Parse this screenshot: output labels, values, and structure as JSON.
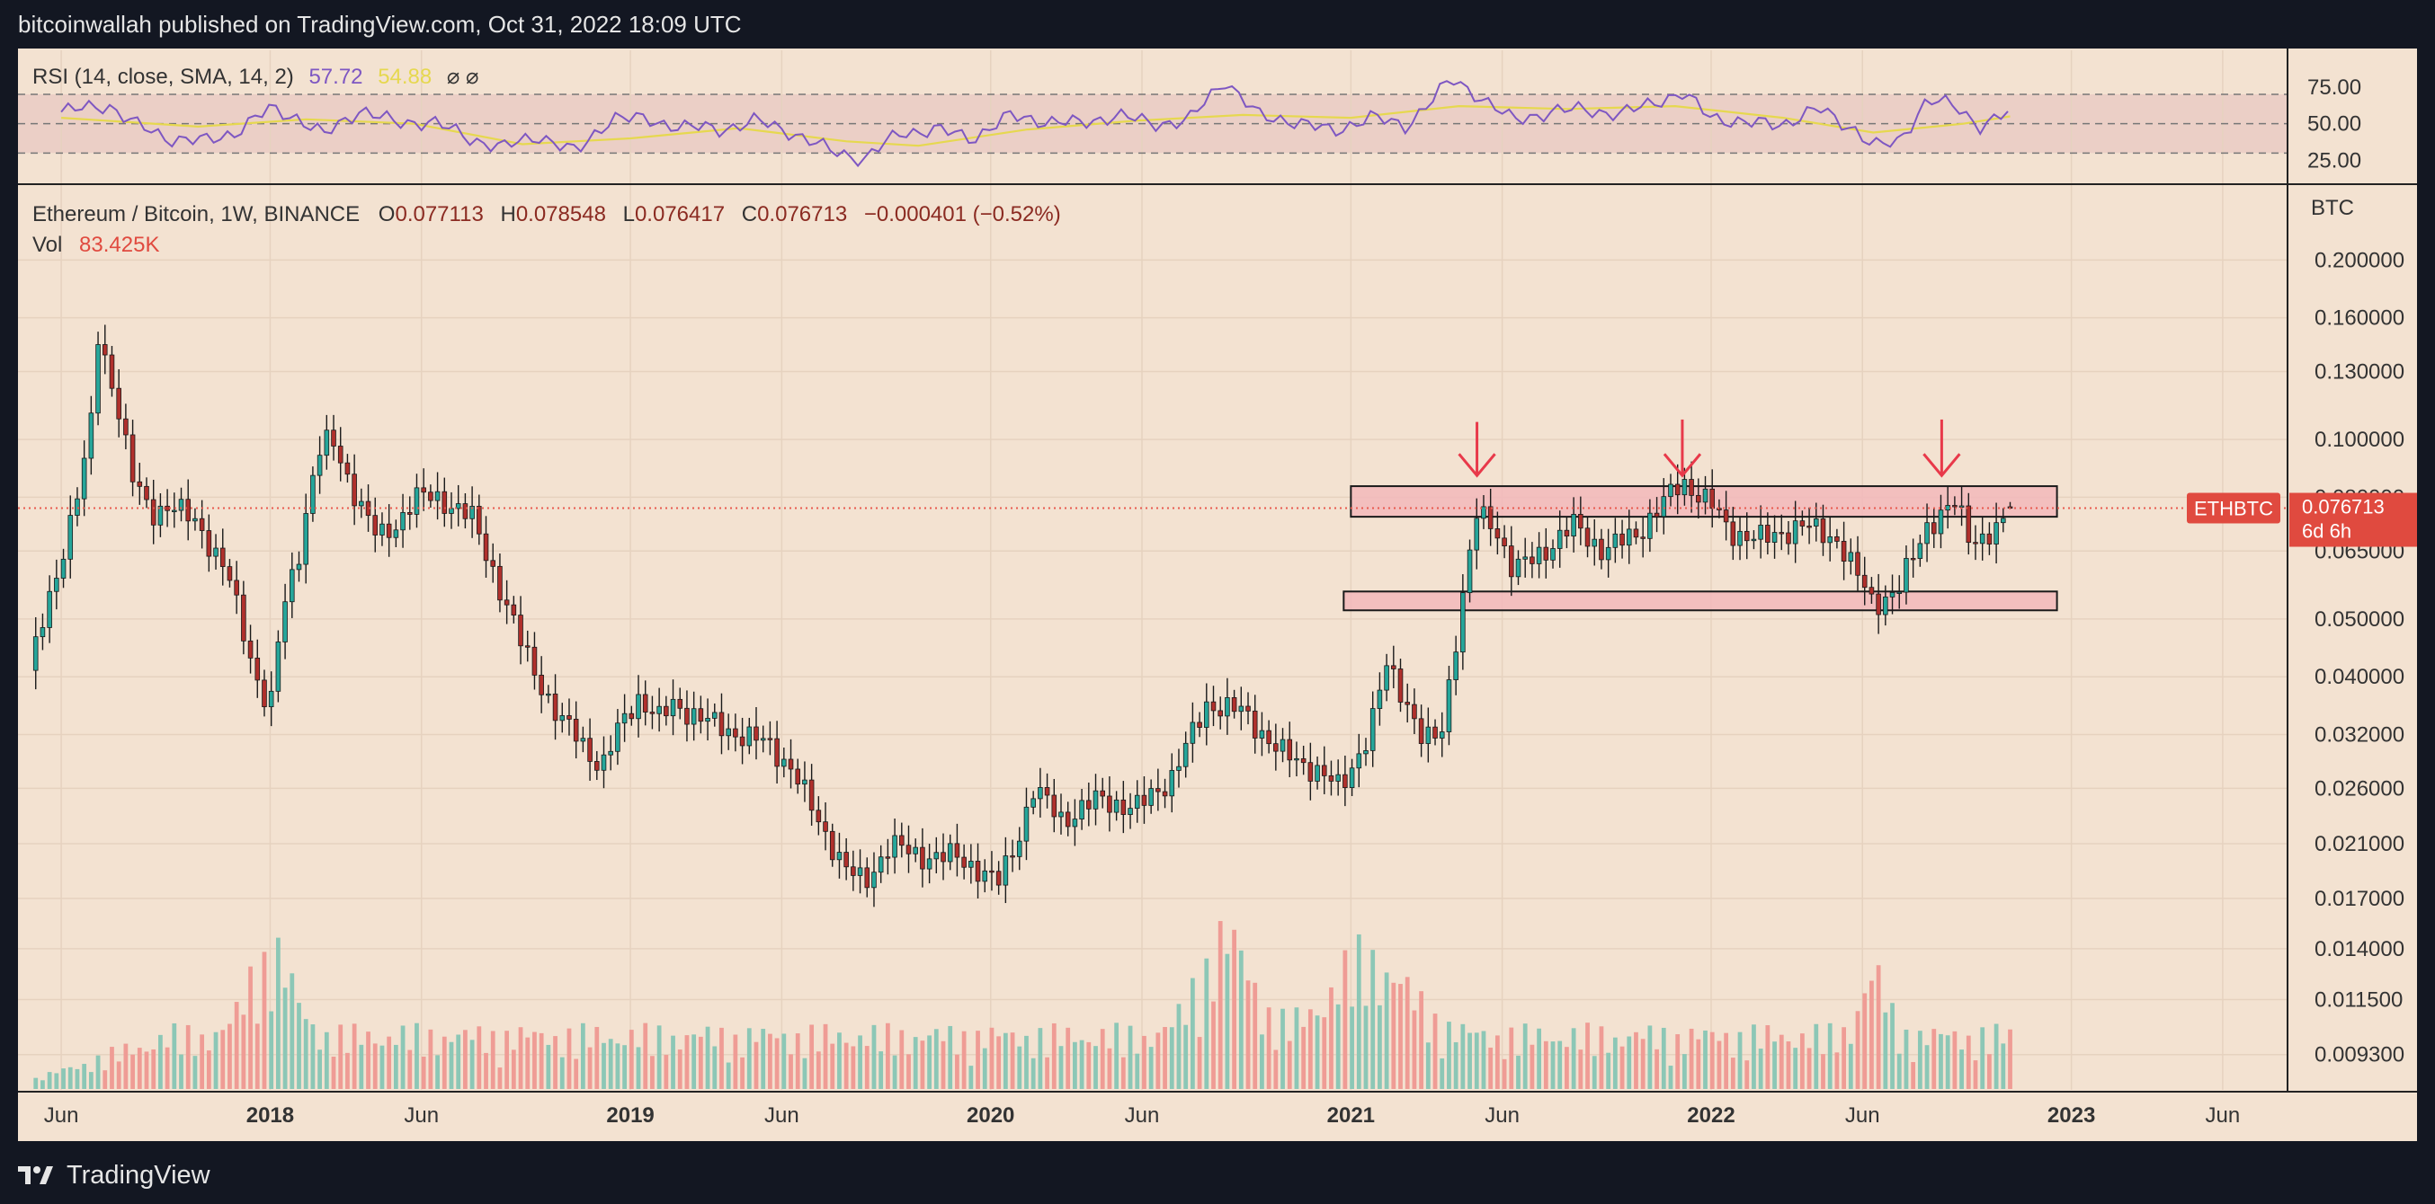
{
  "header": {
    "published": "bitcoinwallah published on TradingView.com, Oct 31, 2022 18:09 UTC"
  },
  "footer": {
    "brand": "TradingView"
  },
  "colors": {
    "background": "#f3e2d1",
    "up": "#26a69a",
    "down": "#b0302c",
    "up_volume": "#8cc7b6",
    "down_volume": "#ef9c95",
    "zone": "#f2b9bb",
    "arrow": "#e8394a",
    "rsi": "#7e57c2",
    "rsi_ma": "#e6d84f",
    "price_line": "#e85a4f"
  },
  "chart_data": [
    {
      "type": "line",
      "title": "RSI (14, close, SMA, 14, 2)",
      "legend": [
        {
          "name": "RSI",
          "value": "57.72"
        },
        {
          "name": "SMA",
          "value": "54.88"
        }
      ],
      "legend_extra": "⌀ ⌀",
      "ylim": [
        10,
        100
      ],
      "y_ticks": [
        "75.00",
        "50.00",
        "25.00"
      ],
      "bands": [
        30,
        50,
        70
      ],
      "rsi_points": [
        [
          2017.42,
          58
        ],
        [
          2017.55,
          63
        ],
        [
          2017.62,
          50
        ],
        [
          2017.72,
          40
        ],
        [
          2017.82,
          38
        ],
        [
          2017.9,
          44
        ],
        [
          2018.0,
          60
        ],
        [
          2018.07,
          55
        ],
        [
          2018.15,
          42
        ],
        [
          2018.25,
          60
        ],
        [
          2018.35,
          50
        ],
        [
          2018.45,
          52
        ],
        [
          2018.55,
          40
        ],
        [
          2018.65,
          34
        ],
        [
          2018.75,
          42
        ],
        [
          2018.85,
          30
        ],
        [
          2018.95,
          55
        ],
        [
          2019.05,
          52
        ],
        [
          2019.15,
          48
        ],
        [
          2019.25,
          46
        ],
        [
          2019.35,
          52
        ],
        [
          2019.45,
          44
        ],
        [
          2019.55,
          32
        ],
        [
          2019.65,
          26
        ],
        [
          2019.75,
          44
        ],
        [
          2019.85,
          46
        ],
        [
          2019.95,
          40
        ],
        [
          2020.05,
          55
        ],
        [
          2020.15,
          52
        ],
        [
          2020.25,
          50
        ],
        [
          2020.35,
          56
        ],
        [
          2020.45,
          50
        ],
        [
          2020.55,
          52
        ],
        [
          2020.65,
          80
        ],
        [
          2020.75,
          54
        ],
        [
          2020.85,
          52
        ],
        [
          2020.95,
          44
        ],
        [
          2021.05,
          55
        ],
        [
          2021.15,
          48
        ],
        [
          2021.28,
          80
        ],
        [
          2021.35,
          70
        ],
        [
          2021.45,
          52
        ],
        [
          2021.55,
          58
        ],
        [
          2021.65,
          60
        ],
        [
          2021.75,
          56
        ],
        [
          2021.85,
          66
        ],
        [
          2021.92,
          70
        ],
        [
          2022.0,
          55
        ],
        [
          2022.1,
          50
        ],
        [
          2022.2,
          50
        ],
        [
          2022.3,
          60
        ],
        [
          2022.4,
          46
        ],
        [
          2022.45,
          34
        ],
        [
          2022.52,
          38
        ],
        [
          2022.6,
          66
        ],
        [
          2022.68,
          62
        ],
        [
          2022.75,
          48
        ],
        [
          2022.83,
          58
        ]
      ],
      "rsi_ma_points": [
        [
          2017.42,
          54
        ],
        [
          2017.8,
          48
        ],
        [
          2018.1,
          53
        ],
        [
          2018.4,
          50
        ],
        [
          2018.7,
          36
        ],
        [
          2019.0,
          40
        ],
        [
          2019.3,
          47
        ],
        [
          2019.6,
          38
        ],
        [
          2019.8,
          35
        ],
        [
          2020.1,
          46
        ],
        [
          2020.4,
          52
        ],
        [
          2020.7,
          56
        ],
        [
          2021.0,
          54
        ],
        [
          2021.3,
          62
        ],
        [
          2021.6,
          60
        ],
        [
          2021.9,
          62
        ],
        [
          2022.2,
          54
        ],
        [
          2022.45,
          44
        ],
        [
          2022.7,
          50
        ],
        [
          2022.83,
          55
        ]
      ]
    },
    {
      "type": "candlestick",
      "title": "Ethereum / Bitcoin, 1W, BINANCE",
      "symbol": "ETHBTC",
      "ohlc": {
        "o_label": "O",
        "o": "0.077113",
        "h_label": "H",
        "h": "0.078548",
        "l_label": "L",
        "l": "0.076417",
        "c_label": "C",
        "c": "0.076713",
        "change": "−0.000401 (−0.52%)"
      },
      "volume": {
        "label": "Vol",
        "value": "83.425K"
      },
      "unit": "BTC",
      "y_scale": "log",
      "ylim": [
        0.0082,
        0.25
      ],
      "y_ticks": [
        "0.200000",
        "0.160000",
        "0.130000",
        "0.100000",
        "0.080000",
        "0.065000",
        "0.050000",
        "0.040000",
        "0.032000",
        "0.026000",
        "0.021000",
        "0.017000",
        "0.014000",
        "0.011500",
        "0.009300"
      ],
      "x_ticks": [
        "Jun",
        "2018",
        "Jun",
        "2019",
        "Jun",
        "2020",
        "Jun",
        "2021",
        "Jun",
        "2022",
        "Jun",
        "2023",
        "Jun"
      ],
      "x_tick_positions": [
        2017.42,
        2018.0,
        2018.42,
        2019.0,
        2019.42,
        2020.0,
        2020.42,
        2021.0,
        2021.42,
        2022.0,
        2022.42,
        2023.0,
        2023.42
      ],
      "last_price": {
        "value": "0.076713",
        "countdown": "6d 6h"
      },
      "price_anchors": [
        [
          2017.33,
          0.041
        ],
        [
          2017.4,
          0.057
        ],
        [
          2017.45,
          0.075
        ],
        [
          2017.5,
          0.1
        ],
        [
          2017.52,
          0.15
        ],
        [
          2017.57,
          0.12
        ],
        [
          2017.62,
          0.085
        ],
        [
          2017.67,
          0.075
        ],
        [
          2017.72,
          0.078
        ],
        [
          2017.8,
          0.072
        ],
        [
          2017.88,
          0.06
        ],
        [
          2017.95,
          0.042
        ],
        [
          2018.0,
          0.035
        ],
        [
          2018.03,
          0.05
        ],
        [
          2018.08,
          0.065
        ],
        [
          2018.13,
          0.095
        ],
        [
          2018.17,
          0.1
        ],
        [
          2018.22,
          0.085
        ],
        [
          2018.3,
          0.068
        ],
        [
          2018.35,
          0.072
        ],
        [
          2018.4,
          0.08
        ],
        [
          2018.45,
          0.08
        ],
        [
          2018.5,
          0.078
        ],
        [
          2018.56,
          0.074
        ],
        [
          2018.62,
          0.06
        ],
        [
          2018.7,
          0.045
        ],
        [
          2018.8,
          0.034
        ],
        [
          2018.85,
          0.032
        ],
        [
          2018.92,
          0.028
        ],
        [
          2018.97,
          0.033
        ],
        [
          2019.02,
          0.037
        ],
        [
          2019.08,
          0.034
        ],
        [
          2019.12,
          0.036
        ],
        [
          2019.2,
          0.034
        ],
        [
          2019.3,
          0.032
        ],
        [
          2019.38,
          0.031
        ],
        [
          2019.45,
          0.028
        ],
        [
          2019.52,
          0.023
        ],
        [
          2019.6,
          0.019
        ],
        [
          2019.65,
          0.018
        ],
        [
          2019.72,
          0.021
        ],
        [
          2019.8,
          0.02
        ],
        [
          2019.9,
          0.02
        ],
        [
          2019.97,
          0.019
        ],
        [
          2020.02,
          0.018
        ],
        [
          2020.07,
          0.021
        ],
        [
          2020.12,
          0.026
        ],
        [
          2020.2,
          0.023
        ],
        [
          2020.3,
          0.025
        ],
        [
          2020.4,
          0.024
        ],
        [
          2020.5,
          0.027
        ],
        [
          2020.6,
          0.036
        ],
        [
          2020.7,
          0.035
        ],
        [
          2020.8,
          0.03
        ],
        [
          2020.9,
          0.028
        ],
        [
          2020.97,
          0.026
        ],
        [
          2021.05,
          0.032
        ],
        [
          2021.1,
          0.042
        ],
        [
          2021.15,
          0.037
        ],
        [
          2021.2,
          0.031
        ],
        [
          2021.25,
          0.032
        ],
        [
          2021.3,
          0.05
        ],
        [
          2021.35,
          0.075
        ],
        [
          2021.4,
          0.072
        ],
        [
          2021.45,
          0.06
        ],
        [
          2021.55,
          0.066
        ],
        [
          2021.62,
          0.072
        ],
        [
          2021.7,
          0.065
        ],
        [
          2021.8,
          0.07
        ],
        [
          2021.88,
          0.08
        ],
        [
          2021.92,
          0.085
        ],
        [
          2022.0,
          0.078
        ],
        [
          2022.05,
          0.07
        ],
        [
          2022.15,
          0.068
        ],
        [
          2022.25,
          0.072
        ],
        [
          2022.35,
          0.068
        ],
        [
          2022.45,
          0.053
        ],
        [
          2022.52,
          0.056
        ],
        [
          2022.6,
          0.072
        ],
        [
          2022.68,
          0.078
        ],
        [
          2022.72,
          0.068
        ],
        [
          2022.8,
          0.07
        ],
        [
          2022.83,
          0.0767
        ]
      ],
      "annotations": [
        {
          "type": "zone",
          "x_range": [
            2021.0,
            2022.96
          ],
          "y_range": [
            0.0742,
            0.0835
          ]
        },
        {
          "type": "zone",
          "x_range": [
            2020.98,
            2022.96
          ],
          "y_range": [
            0.0517,
            0.0556
          ]
        },
        {
          "type": "arrow",
          "x": 2021.35,
          "y_range": [
            0.107,
            0.087
          ]
        },
        {
          "type": "arrow",
          "x": 2021.92,
          "y_range": [
            0.108,
            0.087
          ]
        },
        {
          "type": "arrow",
          "x": 2022.64,
          "y_range": [
            0.108,
            0.087
          ]
        }
      ]
    }
  ]
}
